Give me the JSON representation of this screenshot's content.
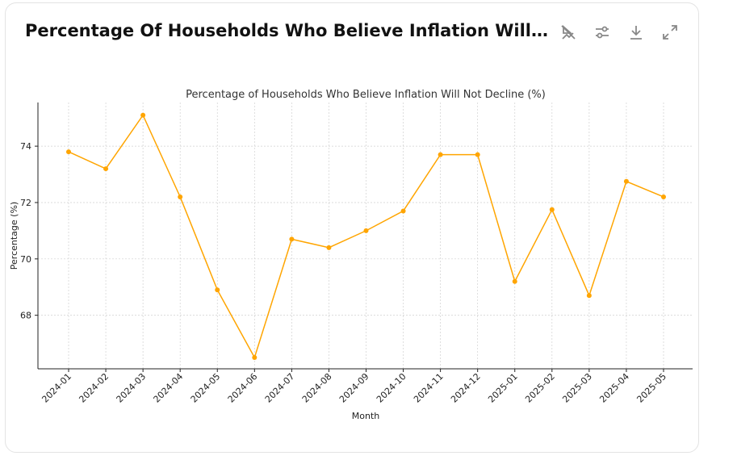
{
  "header": {
    "title": "Percentage Of Households Who Believe Inflation Will Not Decline (%)",
    "icons": [
      "hide-annotations-icon",
      "filter-sliders-icon",
      "download-icon",
      "expand-icon"
    ]
  },
  "colors": {
    "line": "#FFA500",
    "grid": "#d0d0d0",
    "axis": "#222222"
  },
  "chart_data": {
    "type": "line",
    "title": "Percentage of Households Who Believe Inflation Will Not Decline (%)",
    "xlabel": "Month",
    "ylabel": "Percentage (%)",
    "categories": [
      "2024-01",
      "2024-02",
      "2024-03",
      "2024-04",
      "2024-05",
      "2024-06",
      "2024-07",
      "2024-08",
      "2024-09",
      "2024-10",
      "2024-11",
      "2024-12",
      "2025-01",
      "2025-02",
      "2025-03",
      "2025-04",
      "2025-05"
    ],
    "values": [
      73.8,
      73.2,
      75.1,
      72.2,
      68.9,
      66.5,
      70.7,
      70.4,
      71.0,
      71.7,
      73.7,
      73.7,
      69.2,
      71.75,
      68.7,
      72.75,
      72.2
    ],
    "yticks": [
      68,
      70,
      72,
      74
    ],
    "ylim": [
      66.1,
      75.55
    ],
    "grid": true,
    "marker": "circle"
  }
}
